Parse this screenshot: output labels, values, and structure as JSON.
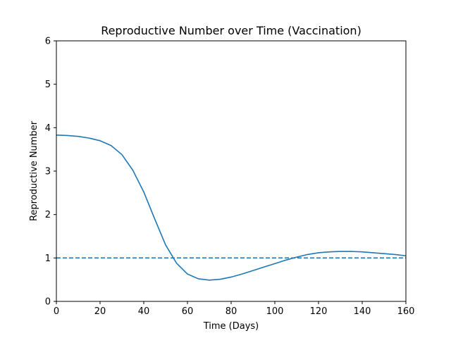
{
  "chart_data": {
    "type": "line",
    "title": "Reproductive Number over Time (Vaccination)",
    "xlabel": "Time (Days)",
    "ylabel": "Reproductive Number",
    "xlim": [
      0,
      160
    ],
    "ylim": [
      0,
      6
    ],
    "xticks": [
      0,
      20,
      40,
      60,
      80,
      100,
      120,
      140,
      160
    ],
    "yticks": [
      0,
      1,
      2,
      3,
      4,
      5,
      6
    ],
    "grid": false,
    "series": [
      {
        "style": "solid",
        "color": "#1f77b4",
        "x": [
          0,
          5,
          10,
          15,
          20,
          25,
          30,
          35,
          40,
          45,
          50,
          55,
          60,
          65,
          70,
          75,
          80,
          85,
          90,
          95,
          100,
          105,
          110,
          115,
          120,
          125,
          130,
          135,
          140,
          145,
          150,
          155,
          160
        ],
        "y": [
          3.83,
          3.82,
          3.8,
          3.76,
          3.7,
          3.59,
          3.38,
          3.02,
          2.52,
          1.9,
          1.3,
          0.88,
          0.63,
          0.52,
          0.49,
          0.51,
          0.56,
          0.63,
          0.71,
          0.79,
          0.87,
          0.95,
          1.02,
          1.08,
          1.12,
          1.14,
          1.15,
          1.15,
          1.14,
          1.12,
          1.1,
          1.08,
          1.05
        ]
      },
      {
        "style": "dashed",
        "color": "#1f77b4",
        "x": [
          0,
          160
        ],
        "y": [
          1,
          1
        ]
      }
    ]
  }
}
